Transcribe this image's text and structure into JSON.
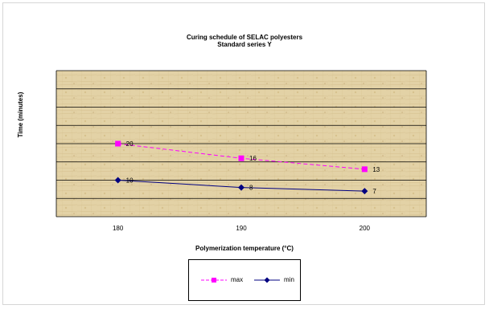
{
  "chart_data": {
    "type": "line",
    "title": "Curing schedule of SELAC polyesters",
    "subtitle": "Standard series Y",
    "xlabel": "Polymerization temperature (°C)",
    "ylabel": "Time (minutes)",
    "categories": [
      "180",
      "190",
      "200"
    ],
    "x": [
      180,
      190,
      200
    ],
    "xlim": [
      175,
      205
    ],
    "ylim": [
      0,
      40
    ],
    "grid": true,
    "legend_position": "bottom",
    "series": [
      {
        "name": "max",
        "values": [
          20,
          16,
          13
        ],
        "color": "#ff00ff",
        "marker": "square",
        "line_style": "dashed"
      },
      {
        "name": "min",
        "values": [
          10,
          8,
          7
        ],
        "color": "#000080",
        "marker": "diamond",
        "line_style": "solid"
      }
    ],
    "background": "parchment"
  }
}
